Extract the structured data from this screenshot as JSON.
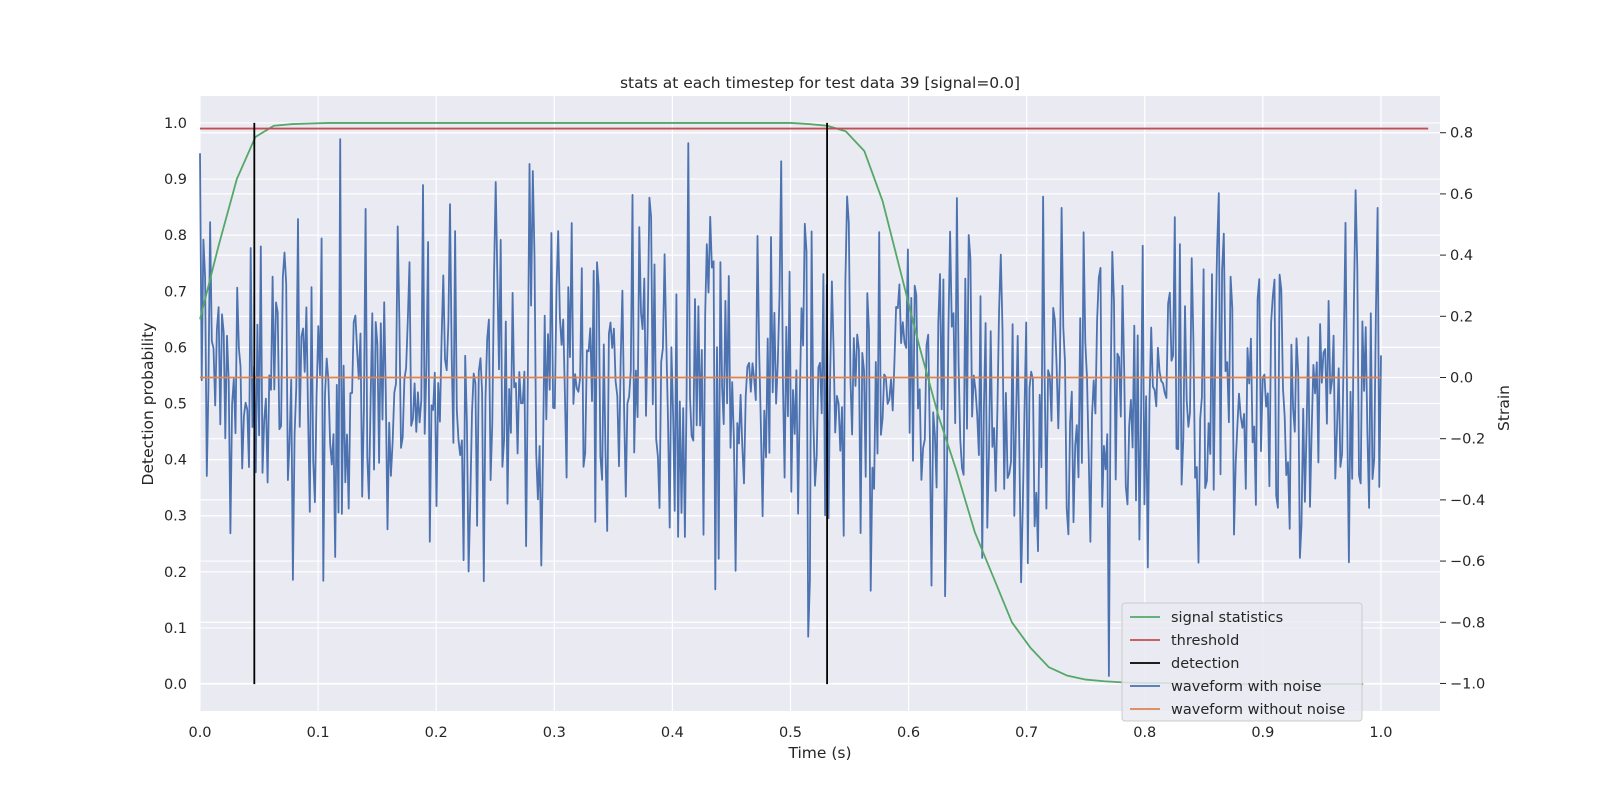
{
  "chart_data": {
    "type": "line",
    "title": "stats at each timestep for test data 39 [signal=0.0]",
    "xlabel": "Time (s)",
    "ylabel": "Detection probability",
    "y2label": "Strain",
    "xlim": [
      0.0,
      1.05
    ],
    "ylim": [
      -0.048,
      1.048
    ],
    "y2lim": [
      -1.09,
      0.92
    ],
    "xticks": [
      "0.0",
      "0.1",
      "0.2",
      "0.3",
      "0.4",
      "0.5",
      "0.6",
      "0.7",
      "0.8",
      "0.9",
      "1.0"
    ],
    "yticks": [
      "0.0",
      "0.1",
      "0.2",
      "0.3",
      "0.4",
      "0.5",
      "0.6",
      "0.7",
      "0.8",
      "0.9",
      "1.0"
    ],
    "y2ticks": [
      "−1.0",
      "−0.8",
      "−0.6",
      "−0.4",
      "−0.2",
      "0.0",
      "0.2",
      "0.4",
      "0.6",
      "0.8"
    ],
    "grid": true,
    "legend_position": "lower-right",
    "colors": {
      "signal": "#55a868",
      "threshold": "#c44e52",
      "detection": "#000000",
      "noisy": "#4c72b0",
      "clean": "#dd8452",
      "plot_bg": "#eaeaf2",
      "grid": "#ffffff"
    },
    "series": [
      {
        "name": "signal statistics",
        "axis": "left",
        "x": [
          0.0,
          0.0156,
          0.0312,
          0.0469,
          0.0625,
          0.0781,
          0.0938,
          0.1094,
          0.125,
          0.25,
          0.375,
          0.5,
          0.5156,
          0.5312,
          0.5469,
          0.5625,
          0.5781,
          0.5938,
          0.6094,
          0.625,
          0.6406,
          0.6562,
          0.6719,
          0.6875,
          0.7031,
          0.7188,
          0.7344,
          0.75,
          0.7656,
          0.7812,
          0.7969,
          0.8125,
          0.8281,
          0.8438,
          0.8594,
          0.875,
          0.9,
          0.95,
          0.985
        ],
        "y": [
          0.65,
          0.78,
          0.9,
          0.975,
          0.995,
          0.998,
          0.999,
          1.0,
          1.0,
          1.0,
          1.0,
          1.0,
          0.998,
          0.995,
          0.985,
          0.95,
          0.86,
          0.73,
          0.6,
          0.48,
          0.38,
          0.27,
          0.19,
          0.11,
          0.065,
          0.03,
          0.015,
          0.008,
          0.005,
          0.003,
          0.002,
          0.002,
          0.001,
          0.001,
          0.001,
          0.0,
          0.0,
          0.0,
          0.0
        ]
      },
      {
        "name": "threshold",
        "axis": "left",
        "x": [
          0.0,
          1.04
        ],
        "y": [
          0.99,
          0.99
        ]
      },
      {
        "name": "detection",
        "axis": "left",
        "x": [
          0.046,
          0.531
        ],
        "y": [
          1.0,
          1.0
        ]
      },
      {
        "name": "waveform with noise",
        "axis": "right",
        "x_range": [
          0.0,
          1.0
        ],
        "points": 700,
        "std": 0.3,
        "min": -1.0,
        "max": 0.84
      },
      {
        "name": "waveform without noise",
        "axis": "right",
        "x": [
          0.0,
          1.0
        ],
        "y": [
          0.0,
          0.0
        ]
      }
    ]
  }
}
